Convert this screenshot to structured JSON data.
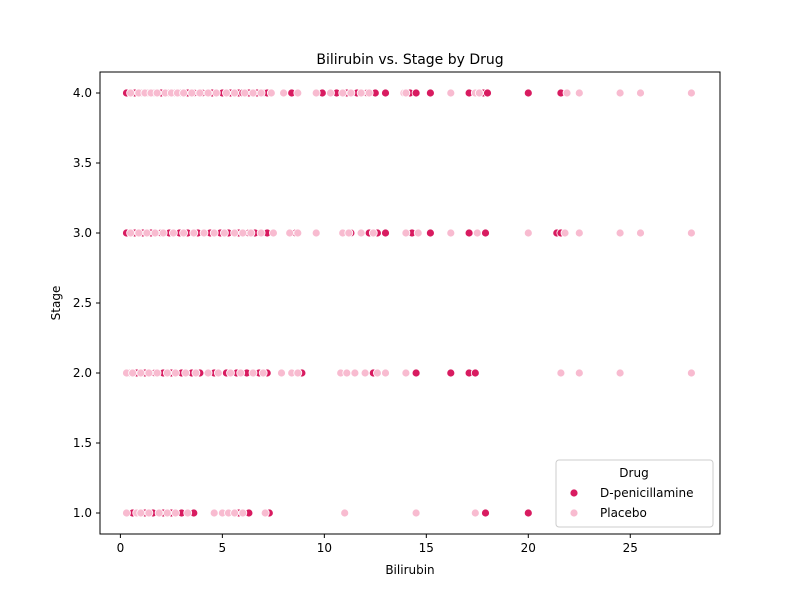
{
  "chart_data": {
    "type": "scatter",
    "title": "Bilirubin vs. Stage by Drug",
    "xlabel": "Bilirubin",
    "ylabel": "Stage",
    "xlim": [
      -1.0,
      29.4
    ],
    "ylim": [
      0.85,
      4.15
    ],
    "xticks": [
      0,
      5,
      10,
      15,
      20,
      25
    ],
    "xtick_labels": [
      "0",
      "5",
      "10",
      "15",
      "20",
      "25"
    ],
    "yticks": [
      1.0,
      1.5,
      2.0,
      2.5,
      3.0,
      3.5,
      4.0
    ],
    "ytick_labels": [
      "1.0",
      "1.5",
      "2.0",
      "2.5",
      "3.0",
      "3.5",
      "4.0"
    ],
    "grid": false,
    "legend": {
      "title": "Drug",
      "placement": "lower-right"
    },
    "series": [
      {
        "name": "D-penicillamine",
        "color": "#d81b60",
        "points": [
          [
            0.3,
            4
          ],
          [
            0.7,
            4
          ],
          [
            1.0,
            4
          ],
          [
            1.3,
            4
          ],
          [
            1.6,
            4
          ],
          [
            2.0,
            4
          ],
          [
            2.3,
            4
          ],
          [
            2.6,
            4
          ],
          [
            2.9,
            4
          ],
          [
            3.3,
            4
          ],
          [
            3.6,
            4
          ],
          [
            4.0,
            4
          ],
          [
            4.5,
            4
          ],
          [
            5.0,
            4
          ],
          [
            5.4,
            4
          ],
          [
            5.8,
            4
          ],
          [
            6.0,
            4
          ],
          [
            6.3,
            4
          ],
          [
            6.7,
            4
          ],
          [
            7.0,
            4
          ],
          [
            7.2,
            4
          ],
          [
            8.4,
            4
          ],
          [
            9.9,
            4
          ],
          [
            10.6,
            4
          ],
          [
            11.1,
            4
          ],
          [
            11.6,
            4
          ],
          [
            12.1,
            4
          ],
          [
            12.5,
            4
          ],
          [
            13.0,
            4
          ],
          [
            14.2,
            4
          ],
          [
            14.5,
            4
          ],
          [
            15.2,
            4
          ],
          [
            16.2,
            4
          ],
          [
            17.1,
            4
          ],
          [
            17.8,
            4
          ],
          [
            18.0,
            4
          ],
          [
            20.0,
            4
          ],
          [
            21.6,
            4
          ],
          [
            0.3,
            3
          ],
          [
            0.7,
            3
          ],
          [
            1.1,
            3
          ],
          [
            1.5,
            3
          ],
          [
            2.0,
            3
          ],
          [
            2.4,
            3
          ],
          [
            2.9,
            3
          ],
          [
            3.3,
            3
          ],
          [
            3.8,
            3
          ],
          [
            4.4,
            3
          ],
          [
            4.9,
            3
          ],
          [
            5.3,
            3
          ],
          [
            5.8,
            3
          ],
          [
            6.3,
            3
          ],
          [
            6.6,
            3
          ],
          [
            7.2,
            3
          ],
          [
            8.6,
            3
          ],
          [
            11.3,
            3
          ],
          [
            12.2,
            3
          ],
          [
            12.6,
            3
          ],
          [
            13.0,
            3
          ],
          [
            14.3,
            3
          ],
          [
            15.2,
            3
          ],
          [
            17.1,
            3
          ],
          [
            17.9,
            3
          ],
          [
            21.4,
            3
          ],
          [
            21.6,
            3
          ],
          [
            0.4,
            2
          ],
          [
            0.8,
            2
          ],
          [
            1.2,
            2
          ],
          [
            1.7,
            2
          ],
          [
            2.1,
            2
          ],
          [
            2.5,
            2
          ],
          [
            3.0,
            2
          ],
          [
            3.5,
            2
          ],
          [
            3.9,
            2
          ],
          [
            4.6,
            2
          ],
          [
            5.2,
            2
          ],
          [
            5.7,
            2
          ],
          [
            6.2,
            2
          ],
          [
            6.8,
            2
          ],
          [
            7.2,
            2
          ],
          [
            8.9,
            2
          ],
          [
            12.4,
            2
          ],
          [
            14.5,
            2
          ],
          [
            16.2,
            2
          ],
          [
            17.1,
            2
          ],
          [
            17.4,
            2
          ],
          [
            0.6,
            1
          ],
          [
            1.2,
            1
          ],
          [
            1.6,
            1
          ],
          [
            2.1,
            1
          ],
          [
            2.5,
            1
          ],
          [
            3.0,
            1
          ],
          [
            3.6,
            1
          ],
          [
            5.8,
            1
          ],
          [
            6.3,
            1
          ],
          [
            7.3,
            1
          ],
          [
            17.9,
            1
          ],
          [
            20.0,
            1
          ]
        ]
      },
      {
        "name": "Placebo",
        "color": "#f8bbd0",
        "points": [
          [
            0.5,
            4
          ],
          [
            0.9,
            4
          ],
          [
            1.2,
            4
          ],
          [
            1.5,
            4
          ],
          [
            1.8,
            4
          ],
          [
            2.2,
            4
          ],
          [
            2.5,
            4
          ],
          [
            2.8,
            4
          ],
          [
            3.1,
            4
          ],
          [
            3.5,
            4
          ],
          [
            3.9,
            4
          ],
          [
            4.3,
            4
          ],
          [
            4.7,
            4
          ],
          [
            5.2,
            4
          ],
          [
            5.6,
            4
          ],
          [
            6.1,
            4
          ],
          [
            6.5,
            4
          ],
          [
            6.9,
            4
          ],
          [
            7.4,
            4
          ],
          [
            8.0,
            4
          ],
          [
            8.7,
            4
          ],
          [
            9.6,
            4
          ],
          [
            10.3,
            4
          ],
          [
            10.9,
            4
          ],
          [
            11.3,
            4
          ],
          [
            11.8,
            4
          ],
          [
            12.2,
            4
          ],
          [
            13.9,
            4
          ],
          [
            14.0,
            4
          ],
          [
            16.2,
            4
          ],
          [
            17.4,
            4
          ],
          [
            17.6,
            4
          ],
          [
            21.9,
            4
          ],
          [
            22.5,
            4
          ],
          [
            24.5,
            4
          ],
          [
            25.5,
            4
          ],
          [
            28.0,
            4
          ],
          [
            0.5,
            3
          ],
          [
            0.9,
            3
          ],
          [
            1.3,
            3
          ],
          [
            1.7,
            3
          ],
          [
            2.1,
            3
          ],
          [
            2.6,
            3
          ],
          [
            3.1,
            3
          ],
          [
            3.6,
            3
          ],
          [
            4.1,
            3
          ],
          [
            4.6,
            3
          ],
          [
            5.1,
            3
          ],
          [
            5.6,
            3
          ],
          [
            6.0,
            3
          ],
          [
            6.4,
            3
          ],
          [
            6.9,
            3
          ],
          [
            7.5,
            3
          ],
          [
            8.3,
            3
          ],
          [
            8.7,
            3
          ],
          [
            9.6,
            3
          ],
          [
            10.9,
            3
          ],
          [
            11.2,
            3
          ],
          [
            11.8,
            3
          ],
          [
            12.4,
            3
          ],
          [
            14.0,
            3
          ],
          [
            14.6,
            3
          ],
          [
            16.2,
            3
          ],
          [
            17.5,
            3
          ],
          [
            20.0,
            3
          ],
          [
            21.8,
            3
          ],
          [
            22.5,
            3
          ],
          [
            24.5,
            3
          ],
          [
            25.5,
            3
          ],
          [
            28.0,
            3
          ],
          [
            0.3,
            2
          ],
          [
            0.6,
            2
          ],
          [
            1.0,
            2
          ],
          [
            1.4,
            2
          ],
          [
            1.8,
            2
          ],
          [
            2.3,
            2
          ],
          [
            2.7,
            2
          ],
          [
            3.2,
            2
          ],
          [
            3.7,
            2
          ],
          [
            4.3,
            2
          ],
          [
            4.8,
            2
          ],
          [
            5.4,
            2
          ],
          [
            5.9,
            2
          ],
          [
            6.5,
            2
          ],
          [
            7.0,
            2
          ],
          [
            7.9,
            2
          ],
          [
            8.4,
            2
          ],
          [
            8.7,
            2
          ],
          [
            10.8,
            2
          ],
          [
            11.1,
            2
          ],
          [
            11.5,
            2
          ],
          [
            12.0,
            2
          ],
          [
            12.6,
            2
          ],
          [
            13.0,
            2
          ],
          [
            14.0,
            2
          ],
          [
            21.6,
            2
          ],
          [
            22.5,
            2
          ],
          [
            24.5,
            2
          ],
          [
            28.0,
            2
          ],
          [
            0.3,
            1
          ],
          [
            0.8,
            1
          ],
          [
            1.0,
            1
          ],
          [
            1.4,
            1
          ],
          [
            1.9,
            1
          ],
          [
            2.3,
            1
          ],
          [
            2.7,
            1
          ],
          [
            3.3,
            1
          ],
          [
            4.6,
            1
          ],
          [
            5.0,
            1
          ],
          [
            5.3,
            1
          ],
          [
            5.6,
            1
          ],
          [
            6.0,
            1
          ],
          [
            7.1,
            1
          ],
          [
            11.0,
            1
          ],
          [
            14.5,
            1
          ],
          [
            17.4,
            1
          ]
        ]
      }
    ]
  }
}
